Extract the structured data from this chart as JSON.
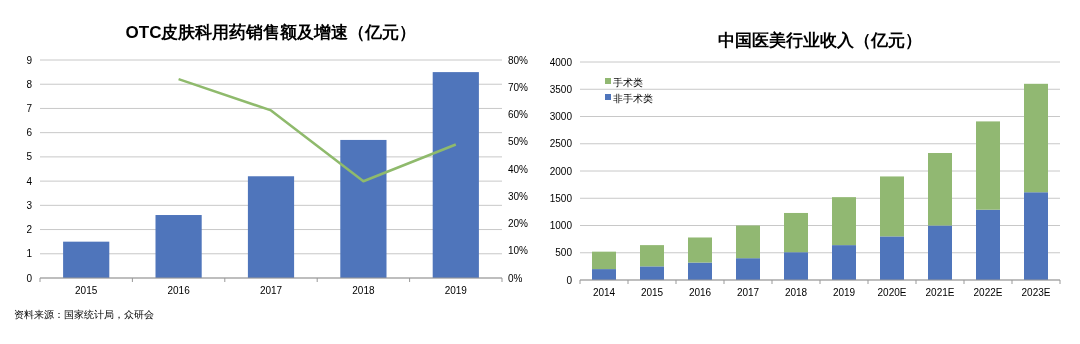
{
  "chart_data": [
    {
      "type": "bar",
      "title": "OTC皮肤科用药销售额及增速（亿元）",
      "categories": [
        "2015",
        "2016",
        "2017",
        "2018",
        "2019"
      ],
      "series": [
        {
          "type": "bar",
          "color": "#4f75bb",
          "values": [
            1.5,
            2.6,
            4.2,
            5.7,
            8.5
          ]
        },
        {
          "type": "line",
          "axis": "y2",
          "color": "#8fba6c",
          "values": [
            null,
            73,
            61.5,
            35.5,
            49
          ]
        }
      ],
      "ylim": [
        0,
        9
      ],
      "yticks": [
        0,
        1,
        2,
        3,
        4,
        5,
        6,
        7,
        8,
        9
      ],
      "y2lim": [
        0,
        80
      ],
      "y2ticks": [
        {
          "value": 0,
          "label": "0%"
        },
        {
          "value": 10,
          "label": "10%"
        },
        {
          "value": 20,
          "label": "20%"
        },
        {
          "value": 30,
          "label": "30%"
        },
        {
          "value": 40,
          "label": "40%"
        },
        {
          "value": 50,
          "label": "50%"
        },
        {
          "value": 60,
          "label": "60%"
        },
        {
          "value": 70,
          "label": "70%"
        },
        {
          "value": 80,
          "label": "80%"
        }
      ],
      "grid": "y",
      "legend": false,
      "marker": "none",
      "line_style": "solid",
      "annotations": [
        "资料来源：国家统计局，众研会"
      ]
    },
    {
      "type": "bar",
      "title": "中国医美行业收入（亿元）",
      "categories": [
        "2014",
        "2015",
        "2016",
        "2017",
        "2018",
        "2019",
        "2020E",
        "2021E",
        "2022E",
        "2023E"
      ],
      "stacked": true,
      "series": [
        {
          "name": "非手术类",
          "color": "#4f75bb",
          "values": [
            200,
            250,
            320,
            400,
            510,
            640,
            800,
            1000,
            1290,
            1610
          ]
        },
        {
          "name": "手术类",
          "color": "#91b872",
          "values": [
            320,
            390,
            460,
            600,
            720,
            880,
            1100,
            1330,
            1620,
            1990
          ]
        }
      ],
      "ylim": [
        0,
        4000
      ],
      "yticks": [
        0,
        500,
        1000,
        1500,
        2000,
        2500,
        3000,
        3500,
        4000
      ],
      "grid": "y",
      "legend": "top left"
    }
  ]
}
